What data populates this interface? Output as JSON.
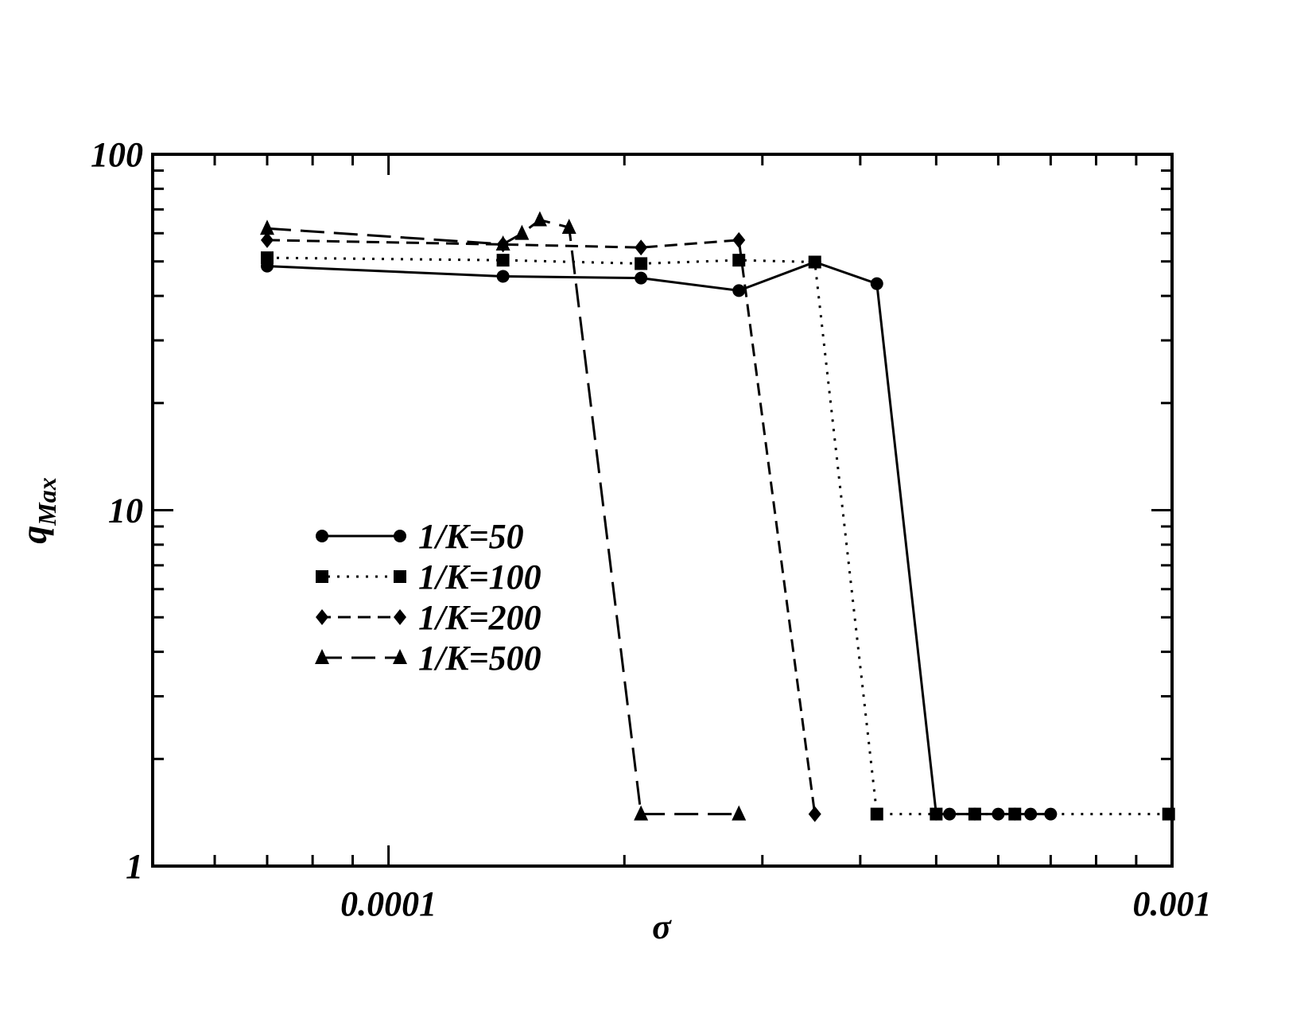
{
  "chart_data": {
    "type": "line",
    "x_label": "σ",
    "y_label": "q",
    "y_label_sub": "Max",
    "xscale": "log",
    "yscale": "log",
    "xlim": [
      5e-05,
      0.001
    ],
    "ylim": [
      1,
      100
    ],
    "xticks": [
      0.0001,
      0.001
    ],
    "yticks": [
      1,
      10,
      100
    ],
    "xminorticks": [
      6e-05,
      7e-05,
      8e-05,
      9e-05,
      0.0002,
      0.0003,
      0.0004,
      0.0005,
      0.0006,
      0.0007,
      0.0008,
      0.0009
    ],
    "yminorticks": [
      2,
      3,
      4,
      5,
      6,
      7,
      8,
      9,
      20,
      30,
      40,
      50,
      60,
      70,
      80,
      90
    ],
    "legend": "center-left",
    "series": [
      {
        "name": "1/K=50",
        "color": "#000000",
        "dash": "solid",
        "marker": "circle",
        "x": [
          7e-05,
          0.00014,
          0.00021,
          0.00028,
          0.00035,
          0.00042,
          0.0005,
          0.00052,
          0.00056,
          0.0006,
          0.00063,
          0.00066,
          0.0007
        ],
        "values": [
          48.5,
          45.4,
          44.9,
          41.4,
          49.8,
          43.3,
          1.4,
          1.4,
          1.4,
          1.4,
          1.4,
          1.4,
          1.4
        ]
      },
      {
        "name": "1/K=100",
        "color": "#000000",
        "dash": "dotted",
        "marker": "square",
        "x": [
          7e-05,
          0.00014,
          0.00021,
          0.00028,
          0.00035,
          0.00042,
          0.0005,
          0.00056,
          0.00063,
          0.00099
        ],
        "values": [
          51.2,
          50.4,
          49.3,
          50.4,
          49.8,
          1.4,
          1.4,
          1.4,
          1.4,
          1.4
        ]
      },
      {
        "name": "1/K=200",
        "color": "#000000",
        "dash": "dashed",
        "marker": "diamond",
        "x": [
          7e-05,
          0.00014,
          0.00021,
          0.00028,
          0.00035
        ],
        "values": [
          57.4,
          55.8,
          54.7,
          57.4,
          1.4
        ]
      },
      {
        "name": "1/K=500",
        "color": "#000000",
        "dash": "longdash",
        "marker": "triangle",
        "x": [
          7e-05,
          0.00014,
          0.000148,
          0.000156,
          0.00017,
          0.00021,
          0.00028
        ],
        "values": [
          61.9,
          55.9,
          59.9,
          65.4,
          62.3,
          1.4,
          1.4
        ]
      }
    ]
  }
}
